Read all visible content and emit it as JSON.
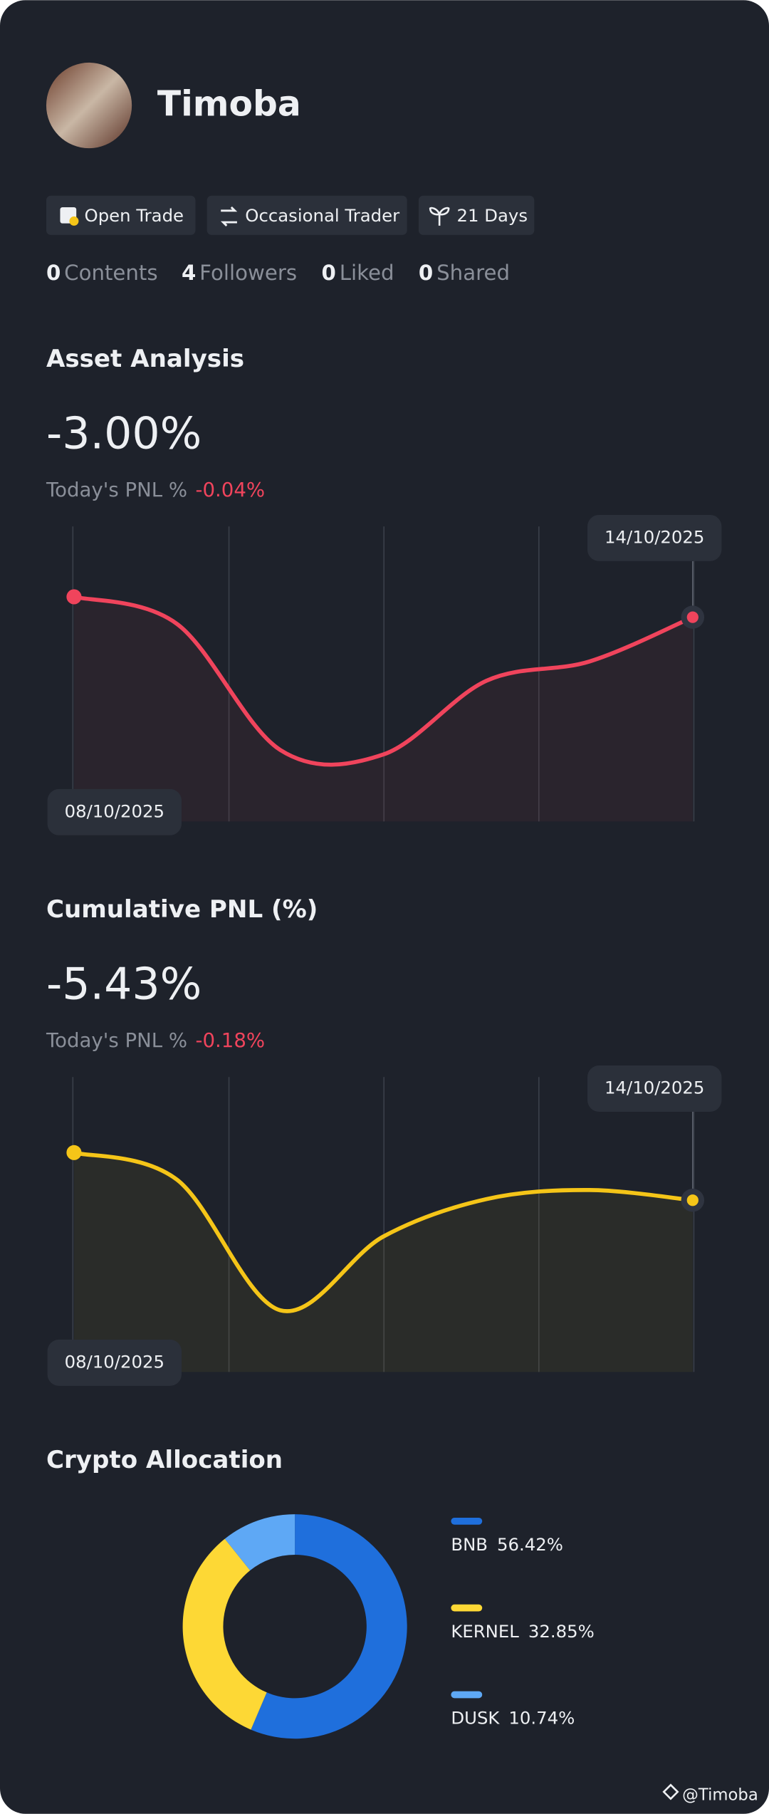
{
  "profile": {
    "name": "Timoba",
    "badges": [
      "Open Trade",
      "Occasional Trader",
      "21 Days"
    ],
    "stats": [
      {
        "count": "0",
        "label": "Contents"
      },
      {
        "count": "4",
        "label": "Followers"
      },
      {
        "count": "0",
        "label": "Liked"
      },
      {
        "count": "0",
        "label": "Shared"
      }
    ]
  },
  "sections": [
    {
      "title": "Asset Analysis",
      "value": "-3.00%",
      "today_label": "Today's PNL %",
      "today_value": "-0.04%",
      "chart_data": {
        "type": "line",
        "categories": [
          "08/10/2025",
          null,
          null,
          null,
          null,
          null,
          "14/10/2025"
        ],
        "values": [
          -2.1,
          -3.3,
          -8.85,
          -9.05,
          -5.8,
          -4.95,
          -3.0
        ],
        "color": "#f0445c",
        "ylim": [
          -12,
          1
        ]
      }
    },
    {
      "title": "Cumulative PNL (%)",
      "value": "-5.43%",
      "today_label": "Today's PNL %",
      "today_value": "-0.18%",
      "chart_data": {
        "type": "line",
        "categories": [
          "08/10/2025",
          null,
          null,
          null,
          null,
          null,
          "14/10/2025"
        ],
        "values": [
          -3.33,
          -4.53,
          -10.28,
          -7.03,
          -5.38,
          -4.98,
          -5.43
        ],
        "color": "#f5c518",
        "ylim": [
          -13,
          0
        ]
      }
    }
  ],
  "allocation": {
    "title": "Crypto Allocation",
    "chart_data": {
      "type": "donut",
      "categories": [
        "BNB",
        "KERNEL",
        "DUSK"
      ],
      "values": [
        56.42,
        32.85,
        10.74
      ],
      "value_labels": [
        "56.42%",
        "32.85%",
        "10.74%"
      ],
      "colors": [
        "#1f6fdc",
        "#fdd835",
        "#5ea8f5"
      ]
    }
  },
  "watermark": "@Timoba"
}
